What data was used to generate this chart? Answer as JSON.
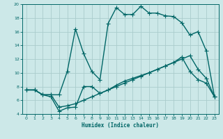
{
  "xlabel": "Humidex (Indice chaleur)",
  "xlim": [
    -0.5,
    23.5
  ],
  "ylim": [
    4,
    20
  ],
  "yticks": [
    4,
    6,
    8,
    10,
    12,
    14,
    16,
    18,
    20
  ],
  "xticks": [
    0,
    1,
    2,
    3,
    4,
    5,
    6,
    7,
    8,
    9,
    10,
    11,
    12,
    13,
    14,
    15,
    16,
    17,
    18,
    19,
    20,
    21,
    22,
    23
  ],
  "background_color": "#cce8e8",
  "grid_color": "#aacccc",
  "line_color": "#006666",
  "line1_x": [
    0,
    1,
    2,
    3,
    4,
    5,
    6,
    7,
    8,
    9,
    10,
    11,
    12,
    13,
    14,
    15,
    16,
    17,
    18,
    19,
    20,
    21,
    22,
    23
  ],
  "line1_y": [
    7.5,
    7.5,
    6.8,
    6.8,
    6.8,
    10.2,
    16.4,
    12.8,
    10.2,
    9.0,
    17.2,
    19.5,
    18.5,
    18.5,
    19.7,
    18.7,
    18.7,
    18.3,
    18.2,
    17.3,
    15.5,
    16.0,
    13.2,
    6.5
  ],
  "line2_x": [
    0,
    1,
    2,
    3,
    4,
    5,
    6,
    7,
    8,
    9,
    10,
    11,
    12,
    13,
    14,
    15,
    16,
    17,
    18,
    19,
    20,
    21,
    22,
    23
  ],
  "line2_y": [
    7.5,
    7.5,
    6.8,
    6.8,
    5.0,
    5.2,
    5.5,
    6.0,
    6.5,
    7.0,
    7.5,
    8.0,
    8.5,
    9.0,
    9.5,
    10.0,
    10.5,
    11.0,
    11.5,
    12.0,
    12.5,
    10.5,
    9.2,
    6.5
  ],
  "line3_x": [
    0,
    1,
    2,
    3,
    4,
    5,
    6,
    7,
    8,
    9,
    10,
    11,
    12,
    13,
    14,
    15,
    16,
    17,
    18,
    19,
    20,
    21,
    22,
    23
  ],
  "line3_y": [
    7.5,
    7.5,
    6.8,
    6.5,
    4.4,
    4.9,
    5.0,
    8.0,
    8.0,
    7.0,
    7.5,
    8.2,
    8.8,
    9.2,
    9.6,
    10.0,
    10.5,
    11.0,
    11.5,
    12.3,
    10.2,
    9.0,
    8.5,
    6.5
  ],
  "markersize": 3,
  "linewidth": 1.0
}
